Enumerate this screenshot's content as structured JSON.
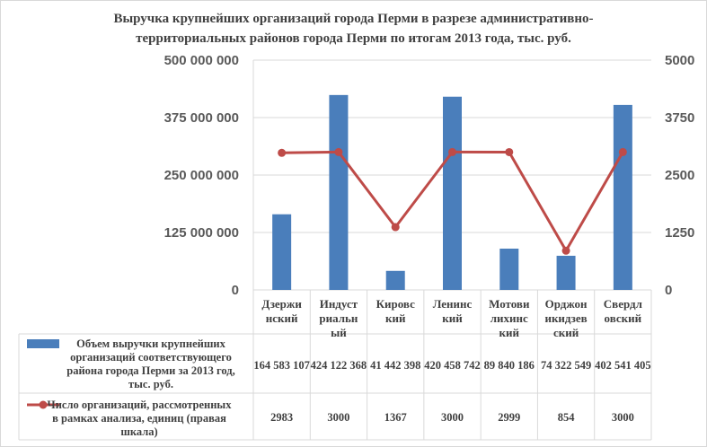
{
  "title_lines": [
    "Выручка крупнейших организаций города Перми в разрезе административно-",
    "территориальных районов города Перми по итогам 2013 года, тыс. руб."
  ],
  "colors": {
    "bar": "#4a7ebb",
    "line": "#be4b48",
    "grid": "#d9d9d9",
    "text": "#404040"
  },
  "chart_data": {
    "type": "bar",
    "title": "Выручка крупнейших организаций города Перми в разрезе административно-территориальных районов города Перми по итогам 2013 года, тыс. руб.",
    "categories": [
      [
        "Дзержи",
        "нский"
      ],
      [
        "Индуст",
        "риальн",
        "ый"
      ],
      [
        "Кировс",
        "кий"
      ],
      [
        "Ленинс",
        "кий"
      ],
      [
        "Мотови",
        "лихинс",
        "кий"
      ],
      [
        "Орджон",
        "икидзев",
        "ский"
      ],
      [
        "Свердл",
        "овский"
      ]
    ],
    "series": [
      {
        "name_lines": [
          "Объем выручки крупнейших",
          "организаций соответствующего",
          "района города Перми за 2013 год,",
          "тыс. руб."
        ],
        "type": "bar",
        "axis": "left",
        "values": [
          164583107,
          424122368,
          41442398,
          420458742,
          89840186,
          74322549,
          402541405
        ],
        "labels": [
          "164 583 107",
          "424 122 368",
          "41 442 398",
          "420 458 742",
          "89 840 186",
          "74 322 549",
          "402 541 405"
        ]
      },
      {
        "name_lines": [
          "Число организаций, рассмотренных",
          "в рамках анализа, единиц (правая",
          "шкала)"
        ],
        "type": "line",
        "axis": "right",
        "values": [
          2983,
          3000,
          1367,
          3000,
          2999,
          854,
          3000
        ],
        "labels": [
          "2983",
          "3000",
          "1367",
          "3000",
          "2999",
          "854",
          "3000"
        ]
      }
    ],
    "y_left": {
      "range": [
        0,
        500000000
      ],
      "ticks": [
        "0",
        "125 000 000",
        "250 000 000",
        "375 000 000",
        "500 000 000"
      ]
    },
    "y_right": {
      "range": [
        0,
        5000
      ],
      "ticks": [
        "0",
        "1250",
        "2500",
        "3750",
        "5000"
      ]
    },
    "grid": true,
    "legend": "data table below chart"
  }
}
